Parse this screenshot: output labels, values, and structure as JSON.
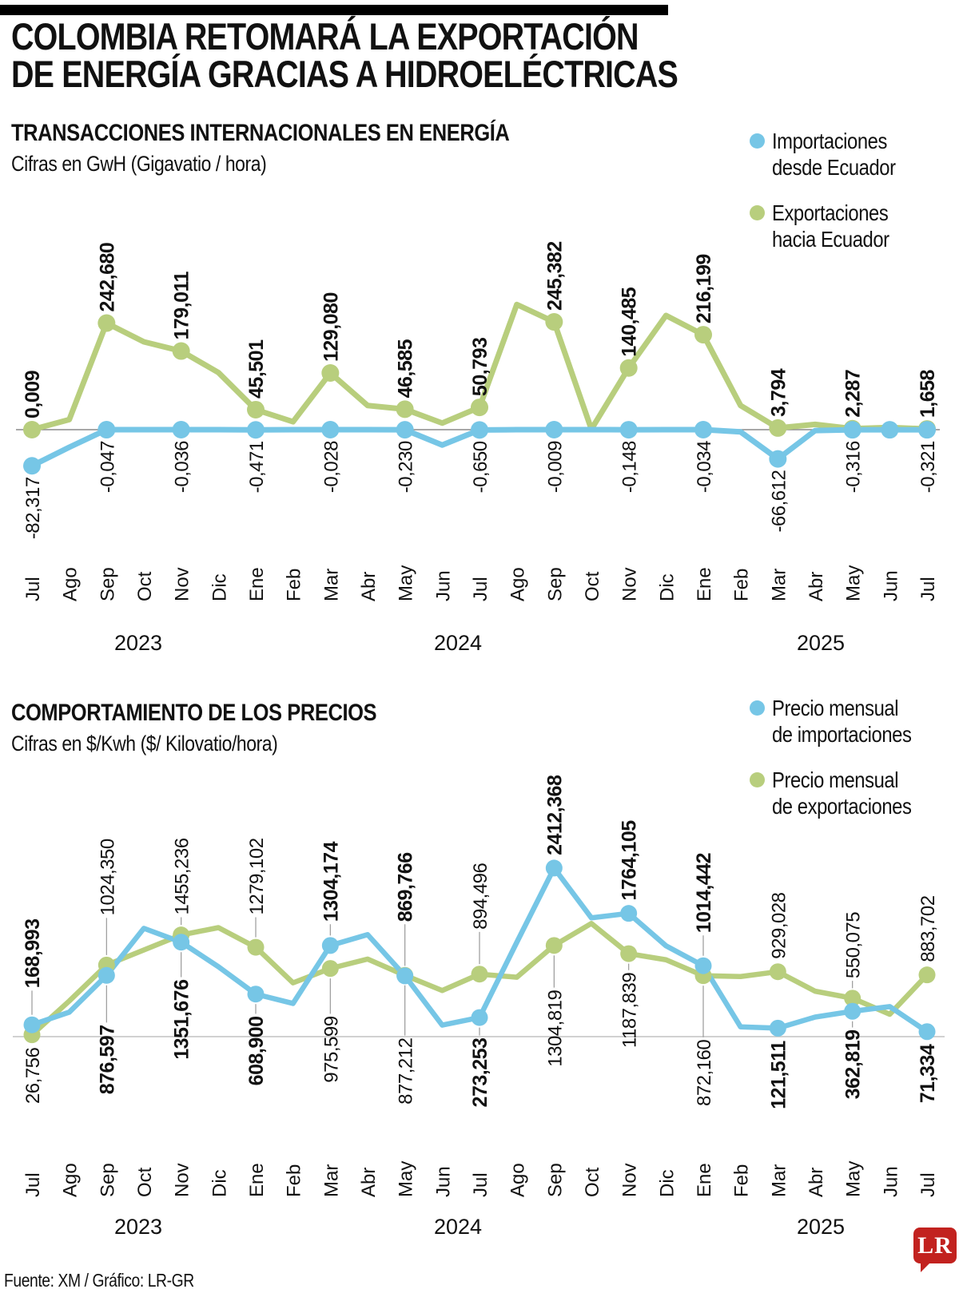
{
  "header": {
    "title_line1": "COLOMBIA RETOMARÁ LA EXPORTACIÓN",
    "title_line2": "DE ENERGÍA GRACIAS A HIDROELÉCTRICAS"
  },
  "colors": {
    "imports_blue": "#76C6E6",
    "exports_green": "#B8CE7D",
    "text_black": "#111111",
    "logo_red": "#C2221F",
    "leader_gray": "#999999"
  },
  "chart_data": [
    {
      "type": "line",
      "title": "TRANSACCIONES INTERNACIONALES EN ENERGÍA",
      "subtitle": "Cifras en GwH (Gigavatio / hora)",
      "axis_color": "#8A8A8A",
      "legend_position": "top-right",
      "x": [
        "Jul",
        "Ago",
        "Sep",
        "Oct",
        "Nov",
        "Dic",
        "Ene",
        "Feb",
        "Mar",
        "Abr",
        "May",
        "Jun",
        "Jul",
        "Ago",
        "Sep",
        "Oct",
        "Nov",
        "Dic",
        "Ene",
        "Feb",
        "Mar",
        "Abr",
        "May",
        "Jun",
        "Jul"
      ],
      "years": [
        "2023",
        "2024",
        "2025"
      ],
      "series": [
        {
          "name": "Importaciones desde Ecuador",
          "name_lines": [
            "Importaciones",
            "desde Ecuador"
          ],
          "color_key": "imports_blue",
          "label_bold": false,
          "values": [
            -82.317,
            -40,
            -0.047,
            -0.01,
            -0.036,
            -0.01,
            -0.471,
            -0.01,
            -0.028,
            -0.01,
            -0.23,
            -35,
            -0.65,
            -0.01,
            -0.009,
            -0.01,
            -0.148,
            -0.01,
            -0.034,
            -5,
            -66.612,
            -2,
            -0.316,
            -0.3,
            -0.321
          ],
          "labels": [
            "-82,317",
            null,
            "-0,047",
            null,
            "-0,036",
            null,
            "-0,471",
            null,
            "-0,028",
            null,
            "-0,230",
            null,
            "-0,650",
            null,
            "-0,009",
            null,
            "-0,148",
            null,
            "-0,034",
            null,
            "-66,612",
            null,
            "-0,316",
            null,
            "-0,321"
          ],
          "sides": [
            "below",
            null,
            "below",
            null,
            "below",
            null,
            "below",
            null,
            "below",
            null,
            "below",
            null,
            "below",
            null,
            "below",
            null,
            "below",
            null,
            "below",
            null,
            "below",
            null,
            "below",
            null,
            "below"
          ],
          "extra_dots": [
            23
          ]
        },
        {
          "name": "Exportaciones hacia Ecuador",
          "name_lines": [
            "Exportaciones",
            "hacia Ecuador"
          ],
          "color_key": "exports_green",
          "label_bold": true,
          "values": [
            0.009,
            23,
            242.68,
            200,
            179.011,
            130,
            45.501,
            18,
            129.08,
            55,
            46.585,
            15,
            50.793,
            285,
            245.382,
            1,
            140.485,
            260,
            216.199,
            55,
            3.794,
            12,
            2.287,
            5,
            1.658
          ],
          "labels": [
            "0,009",
            null,
            "242,680",
            null,
            "179,011",
            null,
            "45,501",
            null,
            "129,080",
            null,
            "46,585",
            null,
            "50,793",
            null,
            "245,382",
            null,
            "140,485",
            null,
            "216,199",
            null,
            "3,794",
            null,
            "2,287",
            null,
            "1,658"
          ],
          "sides": [
            "above",
            null,
            "above",
            null,
            "above",
            null,
            "above",
            null,
            "above",
            null,
            "above",
            null,
            "above",
            null,
            "above",
            null,
            "above",
            null,
            "above",
            null,
            "above",
            null,
            "above",
            null,
            "above"
          ],
          "extra_dots": []
        }
      ]
    },
    {
      "type": "line",
      "title": "COMPORTAMIENTO DE LOS PRECIOS",
      "subtitle": "Cifras en $/Kwh  ($/ Kilovatio/hora)",
      "axis_color": "#C2C2C2",
      "legend_position": "top-right",
      "x": [
        "Jul",
        "Ago",
        "Sep",
        "Oct",
        "Nov",
        "Dic",
        "Ene",
        "Feb",
        "Mar",
        "Abr",
        "May",
        "Jun",
        "Jul",
        "Ago",
        "Sep",
        "Oct",
        "Nov",
        "Dic",
        "Ene",
        "Feb",
        "Mar",
        "Abr",
        "May",
        "Jun",
        "Jul"
      ],
      "years": [
        "2023",
        "2024",
        "2025"
      ],
      "series": [
        {
          "name": "Precio mensual de importaciones",
          "name_lines": [
            "Precio mensual",
            "de importaciones"
          ],
          "color_key": "imports_blue",
          "label_bold": true,
          "values": [
            168.993,
            350,
            876.597,
            1550,
            1351.676,
            1000,
            608.9,
            475,
            1304.174,
            1460,
            869.766,
            165,
            273.253,
            1350,
            2412.368,
            1700,
            1764.105,
            1300,
            1014.442,
            140,
            121.511,
            280,
            362.819,
            430,
            71.334
          ],
          "labels": [
            "168,993",
            null,
            "876,597",
            null,
            "1351,676",
            null,
            "608,900",
            null,
            "1304,174",
            null,
            "869,766",
            null,
            "273,253",
            null,
            "2412,368",
            null,
            "1764,105",
            null,
            "1014,442",
            null,
            "121,511",
            null,
            "362,819",
            null,
            "71,334"
          ],
          "sides": [
            "above",
            null,
            "below",
            null,
            "below",
            null,
            "below",
            null,
            "above",
            null,
            "above",
            null,
            "below",
            null,
            "above",
            null,
            "above",
            null,
            "above",
            null,
            "below",
            null,
            "below",
            null,
            "below"
          ],
          "extra_dots": []
        },
        {
          "name": "Precio mensual de exportaciones",
          "name_lines": [
            "Precio mensual",
            "de exportaciones"
          ],
          "color_key": "exports_green",
          "label_bold": false,
          "values": [
            26.756,
            510,
            1024.35,
            1240,
            1455.236,
            1560,
            1279.102,
            770,
            975.599,
            1110,
            877.212,
            660,
            894.496,
            850,
            1304.819,
            1620,
            1187.839,
            1100,
            872.16,
            860,
            929.028,
            650,
            550.075,
            320,
            883.702
          ],
          "labels": [
            "26,756",
            null,
            "1024,350",
            null,
            "1455,236",
            null,
            "1279,102",
            null,
            "975,599",
            null,
            "877,212",
            null,
            "894,496",
            null,
            "1304,819",
            null,
            "1187,839",
            null,
            "872,160",
            null,
            "929,028",
            null,
            "550,075",
            null,
            "883,702"
          ],
          "sides": [
            "below",
            null,
            "above",
            null,
            "above",
            null,
            "above",
            null,
            "below",
            null,
            "below",
            null,
            "above",
            null,
            "below",
            null,
            "below",
            null,
            "below",
            null,
            "above",
            null,
            "above",
            null,
            "above"
          ],
          "extra_dots": []
        }
      ]
    }
  ],
  "footer": {
    "source": "Fuente: XM / Gráfico: LR-GR",
    "logo_text": "LR"
  }
}
